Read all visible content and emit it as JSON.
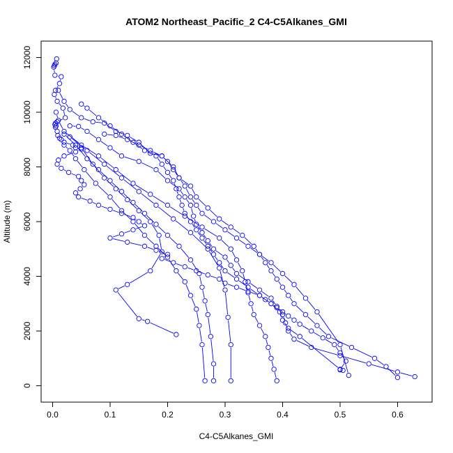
{
  "chart_data": {
    "type": "scatter",
    "title": "ATOM2 Northeast_Pacific_2 C4-C5Alkanes_GMI",
    "xlabel": "C4-C5Alkanes_GMI",
    "ylabel": "Altitude (m)",
    "xlim": [
      -0.02,
      0.66
    ],
    "ylim": [
      -600,
      12600
    ],
    "xticks": [
      0.0,
      0.1,
      0.2,
      0.3,
      0.4,
      0.5,
      0.6
    ],
    "xtick_labels": [
      "0.0",
      "0.1",
      "0.2",
      "0.3",
      "0.4",
      "0.5",
      "0.6"
    ],
    "yticks": [
      0,
      2000,
      4000,
      6000,
      8000,
      10000,
      12000
    ],
    "ytick_labels": [
      "0",
      "2000",
      "4000",
      "6000",
      "8000",
      "10000",
      "12000"
    ],
    "grid": false,
    "marker": "open-circle",
    "color": "#0000ff",
    "series": [
      {
        "x": [
          0.007,
          0.006,
          0.004,
          0.003,
          0.002,
          0.004,
          0.015,
          0.012,
          0.005,
          0.003,
          0.008,
          0.018,
          0.022,
          0.008,
          0.005,
          0.004,
          0.006,
          0.005,
          0.008,
          0.009,
          0.012,
          0.02,
          0.035,
          0.04,
          0.05,
          0.04,
          0.02,
          0.01,
          0.008,
          0.015,
          0.028,
          0.045,
          0.05,
          0.055,
          0.048,
          0.04,
          0.045,
          0.065,
          0.08,
          0.1,
          0.12,
          0.14,
          0.15,
          0.16,
          0.14,
          0.12,
          0.1,
          0.13,
          0.16,
          0.18,
          0.2,
          0.19,
          0.21,
          0.23,
          0.25,
          0.27,
          0.29,
          0.3,
          0.32,
          0.34,
          0.36,
          0.37,
          0.38,
          0.39,
          0.4,
          0.41,
          0.42,
          0.43,
          0.45,
          0.47,
          0.49,
          0.5,
          0.51,
          0.5
        ],
        "y": [
          11950,
          11800,
          11750,
          11700,
          11650,
          11350,
          11300,
          11050,
          10800,
          10650,
          10400,
          10150,
          9800,
          9650,
          9600,
          9550,
          9500,
          9450,
          9300,
          9150,
          9050,
          8900,
          8800,
          8700,
          8650,
          8550,
          8400,
          8250,
          8100,
          7950,
          7800,
          7650,
          7500,
          7350,
          7200,
          7050,
          6900,
          6750,
          6600,
          6450,
          6300,
          6150,
          6000,
          5850,
          5700,
          5550,
          5400,
          5250,
          5100,
          4950,
          4800,
          4650,
          4500,
          4350,
          4200,
          4050,
          3900,
          3750,
          3600,
          3450,
          3300,
          3150,
          3000,
          2850,
          2700,
          2550,
          2400,
          2250,
          2000,
          1750,
          1500,
          1200,
          900,
          580
        ]
      },
      {
        "x": [
          0.01,
          0.02,
          0.03,
          0.05,
          0.07,
          0.09,
          0.11,
          0.13,
          0.15,
          0.17,
          0.19,
          0.21,
          0.22,
          0.24,
          0.25,
          0.27,
          0.29,
          0.31,
          0.33,
          0.35,
          0.36,
          0.37,
          0.38,
          0.39,
          0.4,
          0.41,
          0.42,
          0.44,
          0.46,
          0.48,
          0.52,
          0.56,
          0.58,
          0.6
        ],
        "y": [
          10800,
          10400,
          10100,
          9800,
          9650,
          9600,
          9300,
          9150,
          8900,
          8500,
          8400,
          8000,
          7600,
          7300,
          6900,
          6500,
          6100,
          5800,
          5500,
          5100,
          4800,
          4500,
          4200,
          3900,
          3600,
          3300,
          3000,
          2600,
          2200,
          1800,
          1400,
          1000,
          700,
          300
        ]
      },
      {
        "x": [
          0.03,
          0.045,
          0.06,
          0.08,
          0.1,
          0.12,
          0.15,
          0.18,
          0.2,
          0.22,
          0.23,
          0.24,
          0.245,
          0.25,
          0.26,
          0.27,
          0.28,
          0.3,
          0.31,
          0.32,
          0.34,
          0.36,
          0.38,
          0.39,
          0.4,
          0.405,
          0.41,
          0.42,
          0.45,
          0.5,
          0.55,
          0.6,
          0.63
        ],
        "y": [
          9500,
          9480,
          9300,
          9000,
          8700,
          8400,
          8200,
          7900,
          7500,
          7200,
          6900,
          6600,
          6200,
          5900,
          5600,
          5300,
          5000,
          4700,
          4400,
          4100,
          3800,
          3500,
          3200,
          2900,
          2600,
          2300,
          2000,
          1700,
          1400,
          1100,
          800,
          500,
          330
        ]
      },
      {
        "x": [
          0.05,
          0.06,
          0.08,
          0.1,
          0.12,
          0.14,
          0.16,
          0.18,
          0.19,
          0.2,
          0.21,
          0.215,
          0.22,
          0.225,
          0.23,
          0.24,
          0.25,
          0.26,
          0.27,
          0.28,
          0.29,
          0.3,
          0.32,
          0.34,
          0.36,
          0.38,
          0.395,
          0.4,
          0.41,
          0.43,
          0.5,
          0.505
        ],
        "y": [
          10300,
          10150,
          9800,
          9500,
          9200,
          8900,
          8600,
          8400,
          8100,
          7800,
          7500,
          7200,
          6900,
          6600,
          6300,
          6000,
          5700,
          5400,
          5100,
          4800,
          4500,
          4200,
          3900,
          3600,
          3300,
          3000,
          2700,
          2400,
          2100,
          1800,
          600,
          560
        ]
      },
      {
        "x": [
          0.02,
          0.04,
          0.06,
          0.08,
          0.1,
          0.12,
          0.14,
          0.16,
          0.18,
          0.2,
          0.22,
          0.24,
          0.255,
          0.26,
          0.265,
          0.27,
          0.275,
          0.28,
          0.28
        ],
        "y": [
          9200,
          8800,
          8300,
          7900,
          7500,
          7100,
          6700,
          6300,
          5900,
          5500,
          5100,
          4600,
          4100,
          3600,
          3100,
          2600,
          1800,
          800,
          180
        ]
      },
      {
        "x": [
          0.05,
          0.07,
          0.09,
          0.11,
          0.13,
          0.15,
          0.17,
          0.185,
          0.19,
          0.17,
          0.13,
          0.11,
          0.15,
          0.165,
          0.215
        ],
        "y": [
          8700,
          8100,
          7600,
          7200,
          6800,
          6400,
          6000,
          5500,
          4900,
          4200,
          3700,
          3500,
          2450,
          2350,
          1870
        ]
      },
      {
        "x": [
          0.015,
          0.02,
          0.03,
          0.04,
          0.055,
          0.075,
          0.1,
          0.12,
          0.14,
          0.16,
          0.18,
          0.2,
          0.215,
          0.23,
          0.24,
          0.25,
          0.255,
          0.26,
          0.265
        ],
        "y": [
          9000,
          8800,
          8600,
          8300,
          7900,
          7400,
          6900,
          6400,
          6000,
          5500,
          5100,
          4700,
          4200,
          3800,
          3300,
          2800,
          2200,
          1500,
          180
        ]
      },
      {
        "x": [
          0.006,
          0.01,
          0.02,
          0.05,
          0.08,
          0.11,
          0.14,
          0.17,
          0.2,
          0.23,
          0.26,
          0.29,
          0.31,
          0.32,
          0.33,
          0.335,
          0.34,
          0.345,
          0.35,
          0.36,
          0.37,
          0.375,
          0.38,
          0.385,
          0.39
        ],
        "y": [
          10000,
          9700,
          9300,
          8800,
          8400,
          7900,
          7400,
          7000,
          6600,
          6200,
          5800,
          5400,
          5000,
          4600,
          4200,
          3800,
          3400,
          3000,
          2600,
          2200,
          1800,
          1400,
          1000,
          600,
          180
        ]
      },
      {
        "x": [
          0.03,
          0.06,
          0.09,
          0.12,
          0.15,
          0.18,
          0.21,
          0.24,
          0.27,
          0.29,
          0.3,
          0.305,
          0.31,
          0.31
        ],
        "y": [
          9100,
          8600,
          8100,
          7600,
          7100,
          6600,
          6100,
          5600,
          5000,
          4300,
          3500,
          2500,
          1500,
          180
        ]
      },
      {
        "x": [
          0.09,
          0.11,
          0.13,
          0.15,
          0.17,
          0.19,
          0.2,
          0.21,
          0.22,
          0.23,
          0.24,
          0.25,
          0.26,
          0.28,
          0.3,
          0.32,
          0.34,
          0.36,
          0.38,
          0.4,
          0.42,
          0.44,
          0.46,
          0.5,
          0.515
        ],
        "y": [
          9200,
          9150,
          9000,
          8800,
          8600,
          8400,
          8200,
          7900,
          7600,
          7300,
          6900,
          6600,
          6300,
          6000,
          5700,
          5400,
          5100,
          4800,
          4500,
          4100,
          3700,
          3200,
          2700,
          1500,
          380
        ]
      }
    ]
  }
}
